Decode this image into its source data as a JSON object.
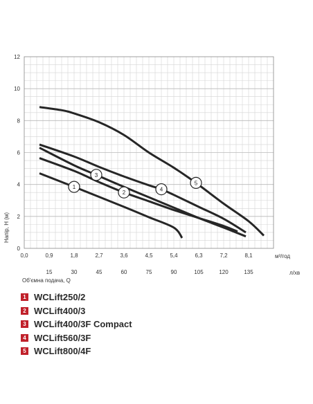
{
  "chart_data": {
    "type": "line",
    "ylabel": "Напір, H (м)",
    "xlabel": "Об'ємна подача, Q",
    "x_unit_top": "м³/год",
    "x_unit_bottom": "л/хв",
    "ylim": [
      0,
      12
    ],
    "xlim_m3h": [
      0,
      9
    ],
    "y_ticks": [
      "0",
      "2",
      "4",
      "6",
      "8",
      "10",
      "12"
    ],
    "x_ticks_m3h": [
      "0,0",
      "0,9",
      "1,8",
      "2,7",
      "3,6",
      "4,5",
      "5,4",
      "6,3",
      "7,2",
      "8,1"
    ],
    "x_ticks_lmin": [
      "15",
      "30",
      "45",
      "60",
      "75",
      "90",
      "105",
      "120",
      "135"
    ],
    "grid": true,
    "series": [
      {
        "name": "WCLift250/2",
        "marker": "1",
        "marker_at": [
          1.8,
          3.85
        ],
        "points": [
          [
            0.55,
            4.7
          ],
          [
            1.8,
            3.85
          ],
          [
            3.6,
            2.6
          ],
          [
            4.5,
            1.95
          ],
          [
            5.4,
            1.3
          ],
          [
            5.7,
            0.65
          ]
        ]
      },
      {
        "name": "WCLift400/3",
        "marker": "2",
        "marker_at": [
          3.6,
          3.5
        ],
        "points": [
          [
            0.55,
            5.65
          ],
          [
            1.8,
            4.85
          ],
          [
            2.7,
            4.15
          ],
          [
            3.6,
            3.5
          ],
          [
            4.5,
            2.95
          ],
          [
            5.4,
            2.4
          ],
          [
            6.3,
            1.9
          ],
          [
            7.2,
            1.4
          ],
          [
            7.7,
            1.05
          ]
        ]
      },
      {
        "name": "WCLift400/3F Compact",
        "marker": "3",
        "marker_at": [
          2.6,
          4.6
        ],
        "points": [
          [
            0.55,
            6.3
          ],
          [
            1.8,
            5.2
          ],
          [
            2.6,
            4.6
          ],
          [
            3.6,
            3.85
          ],
          [
            4.5,
            3.2
          ],
          [
            5.4,
            2.55
          ],
          [
            6.3,
            1.9
          ],
          [
            7.2,
            1.3
          ],
          [
            8.0,
            0.75
          ]
        ]
      },
      {
        "name": "WCLift560/3F",
        "marker": "4",
        "marker_at": [
          4.95,
          3.7
        ],
        "points": [
          [
            0.55,
            6.5
          ],
          [
            1.8,
            5.75
          ],
          [
            2.7,
            5.1
          ],
          [
            3.6,
            4.5
          ],
          [
            4.5,
            3.95
          ],
          [
            4.95,
            3.7
          ],
          [
            5.4,
            3.35
          ],
          [
            6.3,
            2.6
          ],
          [
            7.2,
            1.85
          ],
          [
            8.0,
            1.0
          ]
        ]
      },
      {
        "name": "WCLift800/4F",
        "marker": "5",
        "marker_at": [
          6.2,
          4.1
        ],
        "points": [
          [
            0.55,
            8.85
          ],
          [
            1.35,
            8.65
          ],
          [
            1.8,
            8.45
          ],
          [
            2.7,
            7.9
          ],
          [
            3.6,
            7.1
          ],
          [
            4.5,
            6.0
          ],
          [
            5.4,
            5.05
          ],
          [
            6.2,
            4.1
          ],
          [
            7.2,
            2.8
          ],
          [
            8.1,
            1.7
          ],
          [
            8.65,
            0.8
          ]
        ]
      }
    ]
  },
  "legend": {
    "items": [
      {
        "num": "1",
        "label": "WCLift250/2"
      },
      {
        "num": "2",
        "label": "WCLift400/3"
      },
      {
        "num": "3",
        "label": "WCLift400/3F Compact"
      },
      {
        "num": "4",
        "label": "WCLift560/3F"
      },
      {
        "num": "5",
        "label": "WCLift800/4F"
      }
    ]
  },
  "colors": {
    "curve": "#262626",
    "grid": "#d4d4d4",
    "grid_major": "#b8b8b8",
    "legend_badge": "#c0202a"
  }
}
